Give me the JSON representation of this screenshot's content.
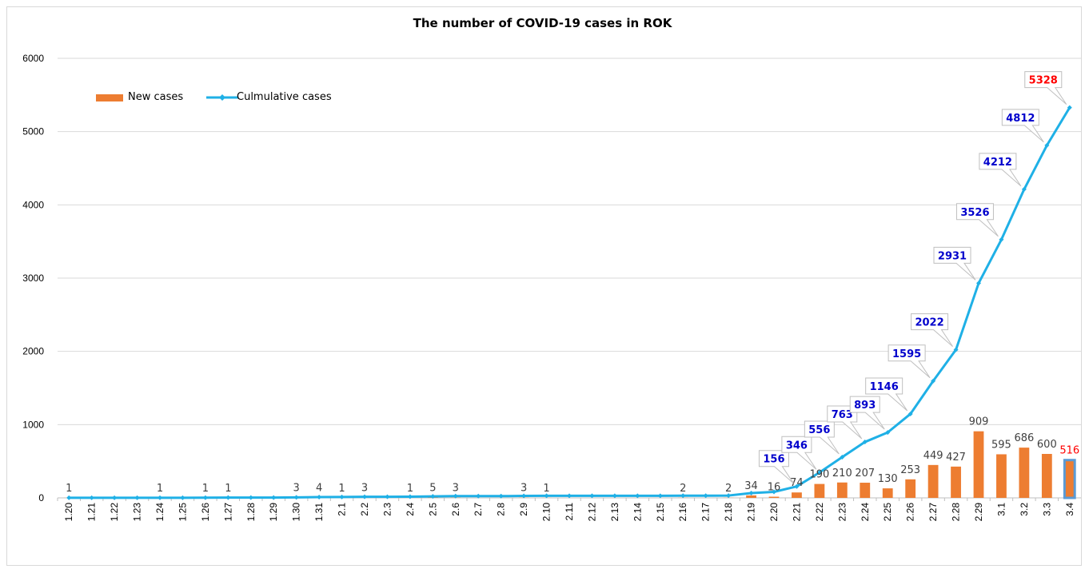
{
  "chart_data": {
    "type": "bar+line",
    "title": "The number of COVID-19 cases in ROK",
    "xlabel": "",
    "ylabel": "",
    "ylim": [
      0,
      6000
    ],
    "yticks": [
      0,
      1000,
      2000,
      3000,
      4000,
      5000,
      6000
    ],
    "grid": true,
    "legend_position": "top-left",
    "categories": [
      "1.20",
      "1.21",
      "1.22",
      "1.23",
      "1.24",
      "1.25",
      "1.26",
      "1.27",
      "1.28",
      "1.29",
      "1.30",
      "1.31",
      "2.1",
      "2.2",
      "2.3",
      "2.4",
      "2.5",
      "2.6",
      "2.7",
      "2.8",
      "2.9",
      "2.10",
      "2.11",
      "2.12",
      "2.13",
      "2.14",
      "2.15",
      "2.16",
      "2.17",
      "2.18",
      "2.19",
      "2.20",
      "2.21",
      "2.22",
      "2.23",
      "2.24",
      "2.25",
      "2.26",
      "2.27",
      "2.28",
      "2.29",
      "3.1",
      "3.2",
      "3.3",
      "3.4"
    ],
    "series": [
      {
        "name": "New cases",
        "kind": "bar",
        "color": "#ED7D31",
        "values": [
          1,
          0,
          0,
          0,
          1,
          0,
          1,
          1,
          0,
          0,
          3,
          4,
          1,
          3,
          0,
          1,
          5,
          3,
          0,
          0,
          3,
          1,
          0,
          0,
          0,
          0,
          0,
          2,
          0,
          2,
          34,
          16,
          74,
          190,
          210,
          207,
          130,
          253,
          449,
          427,
          909,
          595,
          686,
          600,
          516
        ],
        "labels": [
          "1",
          "",
          "",
          "",
          "1",
          "",
          "1",
          "1",
          "",
          "",
          "3",
          "4",
          "1",
          "3",
          "",
          "1",
          "5",
          "3",
          "",
          "",
          "3",
          "1",
          "",
          "",
          "",
          "",
          "",
          "2",
          "",
          "2",
          "34",
          "16",
          "74",
          "190",
          "210",
          "207",
          "130",
          "253",
          "449",
          "427",
          "909",
          "595",
          "686",
          "600",
          "516"
        ]
      },
      {
        "name": "Culmulative cases",
        "kind": "line",
        "color": "#1FB0E6",
        "values": [
          1,
          1,
          1,
          1,
          2,
          2,
          3,
          4,
          4,
          4,
          7,
          11,
          12,
          15,
          15,
          16,
          21,
          24,
          24,
          24,
          27,
          28,
          28,
          28,
          28,
          28,
          28,
          30,
          30,
          32,
          66,
          82,
          156,
          346,
          556,
          763,
          893,
          1146,
          1595,
          2022,
          2931,
          3526,
          4212,
          4812,
          5328
        ],
        "labels": [
          "",
          "",
          "",
          "",
          "",
          "",
          "",
          "",
          "",
          "",
          "",
          "",
          "",
          "",
          "",
          "",
          "",
          "",
          "",
          "",
          "",
          "",
          "",
          "",
          "",
          "",
          "",
          "",
          "",
          "",
          "",
          "",
          "156",
          "346",
          "556",
          "763",
          "893",
          "1146",
          "1595",
          "2022",
          "2931",
          "3526",
          "4212",
          "4812",
          "5328"
        ]
      }
    ],
    "highlight_color": "#FF0000",
    "line_label_color": "#0000CC",
    "bar_label_color": "#404040",
    "highlight_bar_color": "#5B9BD5"
  }
}
